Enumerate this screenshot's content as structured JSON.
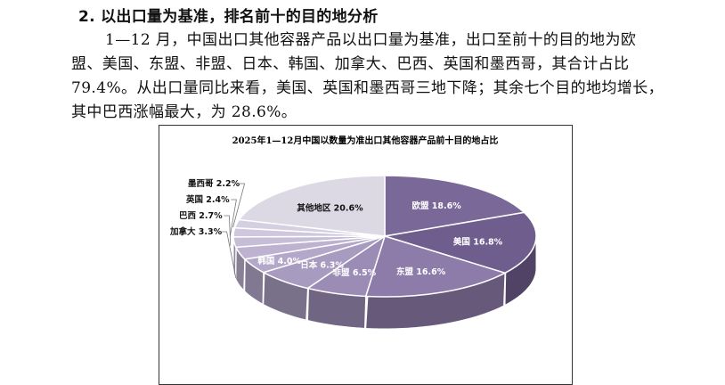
{
  "heading": "2. 以出口量为基准，排名前十的目的地分析",
  "paragraph_lines": [
    "1—12 月，中国出口其他容器产品以出口量为基准，出口至前十的目的地为欧",
    "盟、美国、东盟、非盟、日本、韩国、加拿大、巴西、英国和墨西哥，其合计占比",
    "79.4%。从出口量同比来看，美国、英国和墨西哥三地下降；其余七个目的地均增长，",
    "其中巴西涨幅最大，为 28.6%。"
  ],
  "chart_data": {
    "type": "pie",
    "title": "2025年1—12月中国以数量为准出口其他容器产品前十目的地占比",
    "unit": "%",
    "slices": [
      {
        "name": "欧盟",
        "value": 18.6,
        "label": "欧盟 18.6%",
        "color": "#7a6898"
      },
      {
        "name": "美国",
        "value": 16.8,
        "label": "美国 16.8%",
        "color": "#6f5d8e"
      },
      {
        "name": "东盟",
        "value": 16.6,
        "label": "东盟 16.6%",
        "color": "#8d7ca9"
      },
      {
        "name": "非盟",
        "value": 6.5,
        "label": "非盟 6.5%",
        "color": "#9b8cb5"
      },
      {
        "name": "日本",
        "value": 6.3,
        "label": "日本 6.3%",
        "color": "#a89bc0"
      },
      {
        "name": "韩国",
        "value": 4.0,
        "label": "韩国 4.0%",
        "color": "#b3a8c9"
      },
      {
        "name": "加拿大",
        "value": 3.3,
        "label": "加拿大 3.3%",
        "color": "#bdb3d0"
      },
      {
        "name": "巴西",
        "value": 2.7,
        "label": "巴西 2.7%",
        "color": "#c6bed7"
      },
      {
        "name": "英国",
        "value": 2.4,
        "label": "英国 2.4%",
        "color": "#cec7dd"
      },
      {
        "name": "墨西哥",
        "value": 2.2,
        "label": "墨西哥 2.2%",
        "color": "#d5cfe2"
      },
      {
        "name": "其他地区",
        "value": 20.6,
        "label": "其他地区 20.6%",
        "color": "#dcd8e4"
      }
    ]
  }
}
